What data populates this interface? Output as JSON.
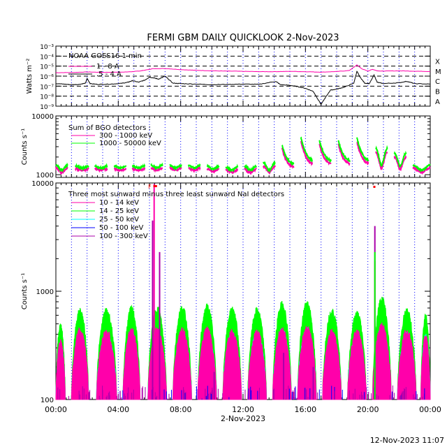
{
  "title": "FERMI GBM DAILY QUICKLOOK    2-Nov-2023",
  "footer_timestamp": "12-Nov-2023 11:07",
  "xaxis": {
    "tick_labels": [
      "00:00",
      "04:00",
      "08:00",
      "12:00",
      "16:00",
      "20:00",
      "00:00"
    ],
    "date_label": "2-Nov-2023",
    "range_hours": [
      0,
      24
    ],
    "major_tick_hours": [
      0,
      4,
      8,
      12,
      16,
      20,
      24
    ]
  },
  "colors": {
    "axis": "#000000",
    "grid_dotted": "#0000ff",
    "magenta": "#ff00aa",
    "green": "#00ff00",
    "cyan": "#00ffff",
    "blue": "#0000ff",
    "purple": "#aa00aa",
    "flag_red": "#ff0000",
    "black": "#000000"
  },
  "chart_data": [
    {
      "type": "line",
      "panel": "goes",
      "ylabel": "Watts m⁻²",
      "yscale": "log",
      "ylim": [
        1e-09,
        0.001
      ],
      "ytick_labels": [
        "10⁻³",
        "10⁻⁴",
        "10⁻⁵",
        "10⁻⁶",
        "10⁻⁷",
        "10⁻⁸",
        "10⁻⁹"
      ],
      "class_letters": [
        "X",
        "M",
        "C",
        "B",
        "A"
      ],
      "legend": [
        {
          "label": "NOAA GOES16 1 min",
          "color": "#000000"
        },
        {
          "label": "1 - 8 A",
          "color": "#ff00aa"
        },
        {
          "label": ".5 - 4 A",
          "color": "#000000"
        }
      ],
      "series": [
        {
          "name": "1 - 8 A",
          "color": "#ff00aa",
          "x": [
            0,
            1,
            2,
            3,
            4,
            4.5,
            5,
            5.4,
            5.8,
            6.2,
            7,
            8,
            9,
            10,
            11,
            12,
            13,
            14,
            15,
            16,
            17,
            18,
            18.8,
            19.3,
            19.6,
            20,
            20.3,
            20.6,
            21,
            22,
            23,
            24
          ],
          "y": [
            2.2e-06,
            2.3e-06,
            2.6e-06,
            2.4e-06,
            2.5e-06,
            2.6e-06,
            2.9e-06,
            3.3e-06,
            4.2e-06,
            5.5e-06,
            5.8e-06,
            4.5e-06,
            3.8e-06,
            3.4e-06,
            3.2e-06,
            3e-06,
            2.8e-06,
            2.8e-06,
            3e-06,
            2.8e-06,
            2.5e-06,
            2.9e-06,
            3.6e-06,
            1.3e-05,
            5.5e-06,
            3.2e-06,
            4.8e-06,
            3.4e-06,
            3.2e-06,
            3.4e-06,
            3.1e-06,
            2.9e-06
          ]
        },
        {
          "name": ".5 - 4 A",
          "color": "#000000",
          "x": [
            0,
            0.5,
            1,
            1.5,
            1.9,
            2.0,
            2.2,
            2.7,
            3.5,
            4.2,
            4.6,
            4.9,
            5.3,
            5.7,
            6.0,
            6.3,
            6.6,
            7.0,
            7.5,
            8.0,
            9,
            10,
            11,
            12,
            13,
            14.1,
            14.4,
            15,
            15.5,
            16,
            16.5,
            17,
            17.3,
            17.6,
            18,
            18.5,
            19.1,
            19.3,
            19.5,
            19.8,
            20.1,
            20.4,
            20.6,
            21,
            22,
            22.5,
            23,
            24
          ],
          "y": [
            1.8e-07,
            1.6e-07,
            1.4e-07,
            1.5e-07,
            2e-07,
            6e-07,
            1.8e-07,
            1.5e-07,
            1.6e-07,
            1.9e-07,
            2.4e-07,
            3.5e-07,
            2.5e-07,
            4e-07,
            8e-07,
            6.5e-07,
            5e-07,
            1e-06,
            2e-07,
            1.8e-07,
            1.6e-07,
            1.4e-07,
            1.5e-07,
            1.6e-07,
            1.5e-07,
            3e-07,
            1.4e-07,
            1.2e-07,
            9e-08,
            6e-08,
            3e-08,
            1.5e-09,
            8e-09,
            4e-08,
            5e-08,
            8e-08,
            2e-07,
            3e-06,
            8e-07,
            2e-07,
            1.8e-07,
            1.3e-06,
            2.4e-07,
            1.8e-07,
            2.2e-07,
            3e-07,
            1.8e-07,
            1.6e-07
          ]
        }
      ]
    },
    {
      "type": "line",
      "panel": "bgo",
      "ylabel": "Counts s⁻¹",
      "yscale": "log",
      "ylim": [
        900,
        10000
      ],
      "ytick_labels": [
        "10000",
        "1000"
      ],
      "legend_title": "Sum of BGO detectors :",
      "legend": [
        {
          "label": "300 - 1000 keV",
          "color": "#ff00aa"
        },
        {
          "label": "1000 - 50000 keV",
          "color": "#00ff00"
        }
      ],
      "passes_hours": [
        [
          0,
          0.75
        ],
        [
          1.25,
          2.1
        ],
        [
          2.5,
          3.3
        ],
        [
          3.75,
          4.5
        ],
        [
          4.9,
          5.7
        ],
        [
          6.1,
          6.85
        ],
        [
          7.3,
          8.05
        ],
        [
          8.5,
          9.25
        ],
        [
          9.7,
          10.45
        ],
        [
          10.9,
          11.65
        ],
        [
          12.1,
          12.85
        ],
        [
          13.3,
          14.05
        ],
        [
          14.5,
          15.25
        ],
        [
          15.7,
          16.45
        ],
        [
          16.9,
          17.65
        ],
        [
          18.1,
          18.85
        ],
        [
          19.3,
          20.05
        ],
        [
          20.5,
          21.25
        ],
        [
          21.7,
          22.45
        ],
        [
          22.9,
          24
        ]
      ],
      "series": [
        {
          "name": "300 - 1000 keV",
          "color": "#ff00aa",
          "pass_start": [
            1300,
            1250,
            1250,
            1250,
            1250,
            1300,
            1300,
            1300,
            1250,
            1200,
            1250,
            1400,
            2800,
            3800,
            3300,
            3400,
            3700,
            2400,
            2000,
            1300
          ],
          "pass_end": [
            1100,
            1200,
            1200,
            1200,
            1200,
            1200,
            1200,
            1200,
            1150,
            1100,
            1100,
            1100,
            1300,
            1450,
            1450,
            1450,
            1450,
            1300,
            1250,
            1100
          ]
        },
        {
          "name": "1000 - 50000 keV",
          "color": "#00ff00",
          "pass_start": [
            1450,
            1400,
            1400,
            1400,
            1400,
            1450,
            1450,
            1450,
            1400,
            1350,
            1400,
            1600,
            3200,
            4400,
            3800,
            3900,
            4300,
            2800,
            2300,
            1450
          ],
          "pass_end": [
            1200,
            1300,
            1300,
            1300,
            1300,
            1300,
            1300,
            1300,
            1250,
            1200,
            1200,
            1200,
            1450,
            1650,
            1650,
            1650,
            1650,
            1450,
            1400,
            1200
          ]
        }
      ]
    },
    {
      "type": "area",
      "panel": "nai",
      "ylabel": "Counts s⁻¹",
      "yscale": "log",
      "ylim": [
        100,
        10000
      ],
      "ytick_labels": [
        "10000",
        "1000",
        "100"
      ],
      "legend_title": "Three most sunward minus three least sunward NaI detectors",
      "legend": [
        {
          "label": "10 - 14 keV",
          "color": "#ff00aa"
        },
        {
          "label": "14 - 25 keV",
          "color": "#00ff00"
        },
        {
          "label": "25 - 50 keV",
          "color": "#00ffff"
        },
        {
          "label": "50 - 100 keV",
          "color": "#0000ff"
        },
        {
          "label": "100 - 300 keV",
          "color": "#aa00aa"
        }
      ],
      "flag_labels": [
        "F"
      ],
      "flag_hours": [
        6.05,
        6.25,
        6.35,
        20.35
      ],
      "day_passes_hours": [
        [
          0,
          0.6
        ],
        [
          1,
          2.1
        ],
        [
          2.6,
          3.9
        ],
        [
          4.3,
          5.4
        ],
        [
          5.9,
          7.1
        ],
        [
          7.5,
          8.7
        ],
        [
          9.1,
          10.3
        ],
        [
          10.7,
          11.9
        ],
        [
          12.3,
          13.5
        ],
        [
          13.9,
          15.1
        ],
        [
          15.5,
          16.7
        ],
        [
          17.1,
          18.3
        ],
        [
          18.7,
          19.9
        ],
        [
          20.3,
          21.5
        ],
        [
          21.9,
          23.1
        ],
        [
          23.4,
          24
        ]
      ],
      "peaks": {
        "14 - 25 keV": [
          480,
          660,
          660,
          690,
          690,
          700,
          720,
          680,
          670,
          760,
          780,
          660,
          620,
          850,
          660,
          600
        ],
        "25 - 50 keV": [
          330,
          400,
          400,
          400,
          400,
          400,
          400,
          400,
          400,
          430,
          440,
          400,
          390,
          450,
          400,
          380
        ],
        "10 - 14 keV": [
          340,
          440,
          420,
          440,
          440,
          440,
          440,
          420,
          420,
          440,
          460,
          430,
          420,
          480,
          430,
          380
        ]
      },
      "spikes": [
        {
          "series": "10 - 14 keV",
          "x": 6.3,
          "y": 9800
        },
        {
          "series": "100 - 300 keV",
          "x": 6.2,
          "y": 4500
        },
        {
          "series": "100 - 300 keV",
          "x": 6.65,
          "y": 2300
        },
        {
          "series": "100 - 300 keV",
          "x": 10.15,
          "y": 180
        },
        {
          "series": "100 - 300 keV",
          "x": 14.6,
          "y": 270
        },
        {
          "series": "100 - 300 keV",
          "x": 16.5,
          "y": 200
        },
        {
          "series": "100 - 300 keV",
          "x": 20.45,
          "y": 4000
        },
        {
          "series": "10 - 14 keV",
          "x": 20.45,
          "y": 1900
        },
        {
          "series": "14 - 25 keV",
          "x": 20.45,
          "y": 2300
        }
      ]
    }
  ]
}
